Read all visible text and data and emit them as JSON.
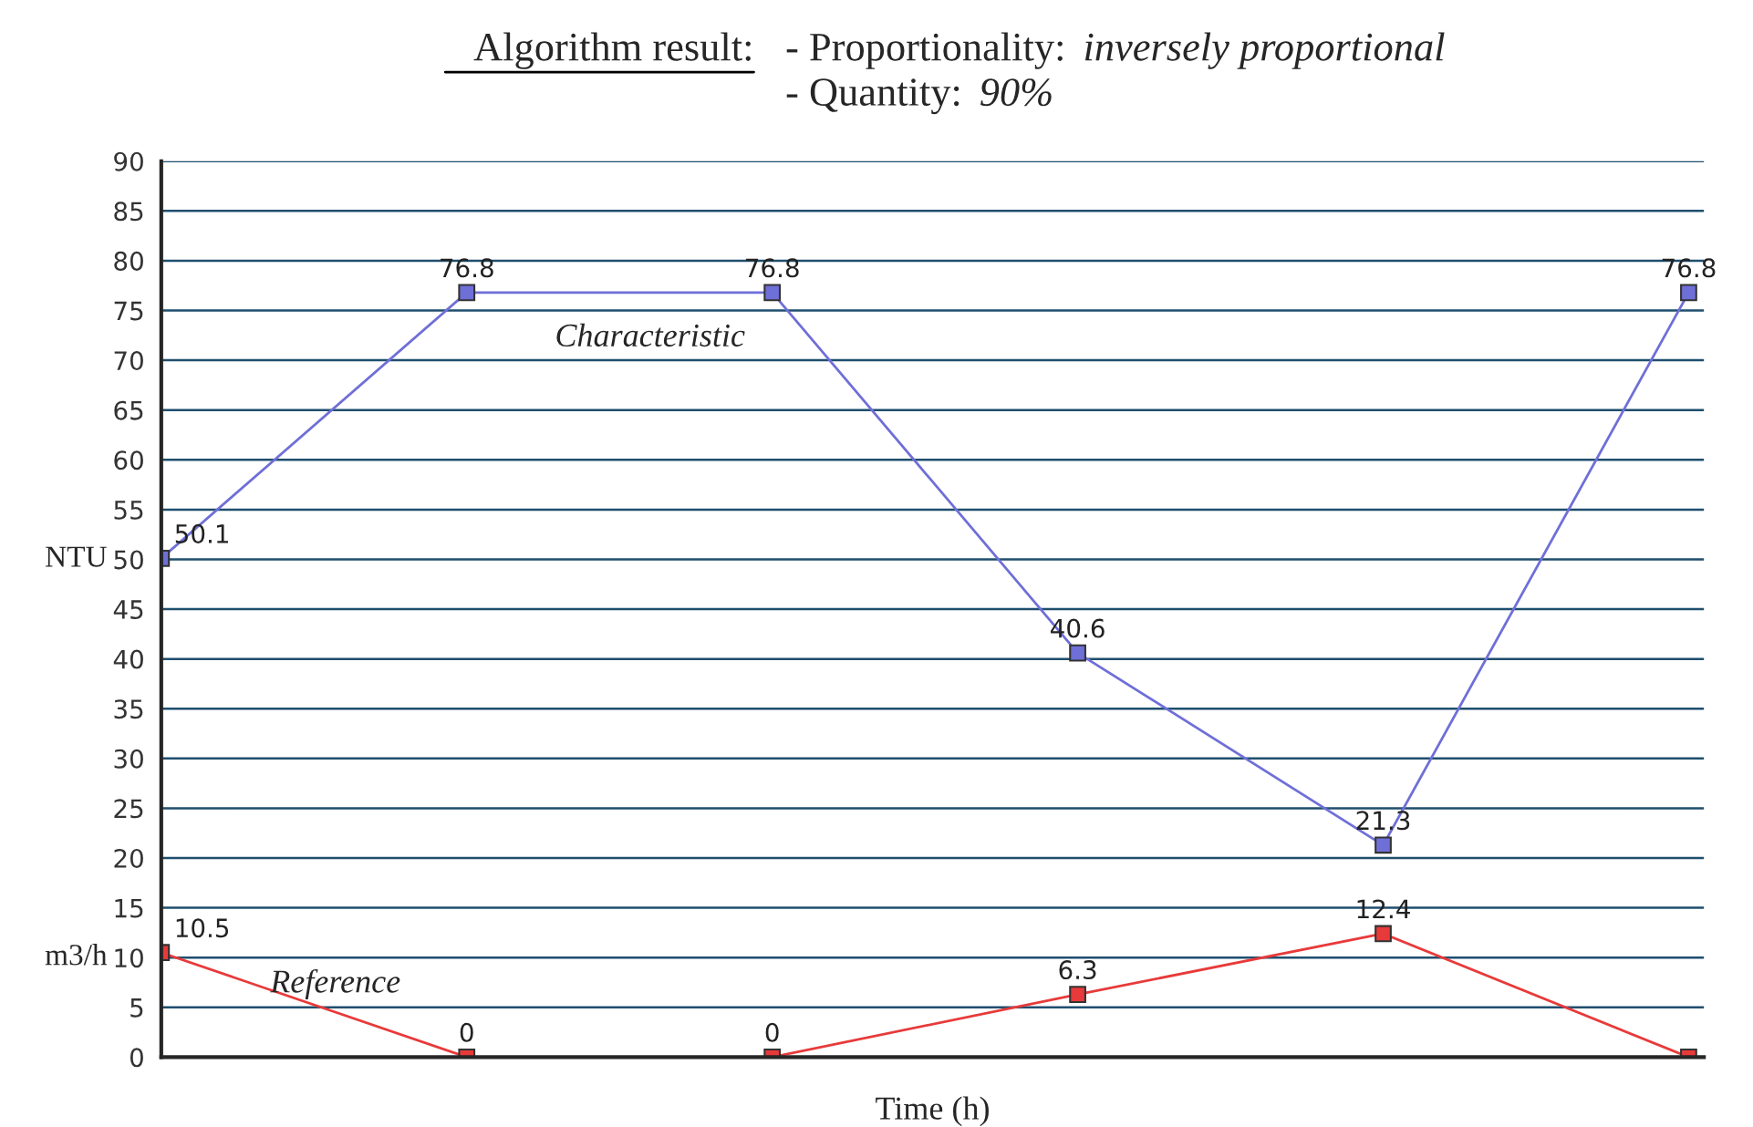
{
  "chart_data": {
    "type": "line",
    "title": "Algorithm result:",
    "annotations": [
      "- Proportionality: inversely proportional",
      "- Quantity: 90%",
      "m3/h"
    ],
    "xlabel": "Time (h)",
    "ylabel": "NTU",
    "categories": [
      null,
      null,
      null,
      null,
      null,
      null
    ],
    "series": [
      {
        "name": "Characteristic",
        "color": "#6f6fd8",
        "values": [
          50.1,
          76.8,
          76.8,
          40.6,
          21.3,
          76.8
        ],
        "value_labels": [
          "50.1",
          "76.8",
          "76.8",
          "40.6",
          "21.3",
          "76.8"
        ]
      },
      {
        "name": "Reference",
        "color": "#e83a3a",
        "values": [
          10.5,
          0,
          0,
          6.3,
          12.4,
          0
        ],
        "value_labels": [
          "10.5",
          "0",
          "0",
          "6.3",
          "12.4",
          null
        ]
      }
    ],
    "ylim": [
      0,
      90
    ],
    "yticks": [
      0,
      5,
      10,
      15,
      20,
      25,
      30,
      35,
      40,
      45,
      50,
      55,
      60,
      65,
      70,
      75,
      80,
      85,
      90
    ],
    "grid": "y",
    "marker": "square",
    "line_style": "solid",
    "legend": false
  }
}
